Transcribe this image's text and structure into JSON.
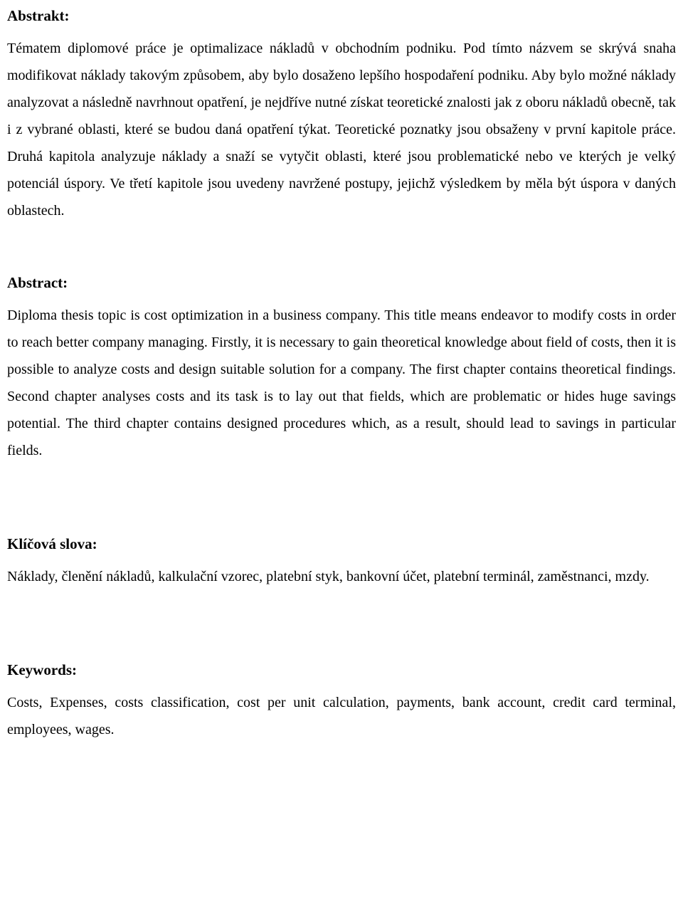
{
  "sections": {
    "abstrakt": {
      "heading": "Abstrakt:",
      "body": "Tématem diplomové práce je optimalizace nákladů v obchodním podniku. Pod tímto názvem se skrývá snaha modifikovat náklady takovým způsobem, aby bylo dosaženo lepšího hospodaření podniku. Aby bylo možné náklady analyzovat a následně navrhnout opatření, je nejdříve nutné získat teoretické znalosti jak z oboru nákladů obecně, tak i z vybrané oblasti, které se budou daná opatření týkat. Teoretické poznatky jsou obsaženy v první kapitole práce. Druhá kapitola analyzuje náklady a snaží se vytyčit oblasti, které jsou problematické nebo ve kterých je velký potenciál úspory. Ve třetí kapitole jsou uvedeny navržené postupy, jejichž výsledkem by měla být úspora v daných oblastech."
    },
    "abstract": {
      "heading": "Abstract:",
      "body": "Diploma thesis topic is cost optimization in a business company. This title means endeavor to modify costs in order to reach better company managing. Firstly, it is necessary to gain theoretical knowledge about field of costs, then it is possible to analyze costs and design suitable solution for a company. The first chapter contains theoretical findings. Second chapter analyses costs and its task is to lay out that fields, which are problematic or hides huge savings potential. The third chapter contains designed procedures which, as a result, should lead to savings in particular fields."
    },
    "klicova_slova": {
      "heading": "Klíčová slova:",
      "body": "Náklady, členění nákladů, kalkulační vzorec, platební styk, bankovní účet, platební terminál, zaměstnanci, mzdy."
    },
    "keywords": {
      "heading": "Keywords:",
      "body": "Costs, Expenses, costs classification, cost per unit calculation, payments, bank account, credit card terminal, employees, wages."
    }
  },
  "style": {
    "font_family": "Times New Roman",
    "heading_fontsize_pt": 16,
    "body_fontsize_pt": 15,
    "line_height": 1.9,
    "text_color": "#000000",
    "background_color": "#ffffff",
    "text_align": "justify"
  }
}
